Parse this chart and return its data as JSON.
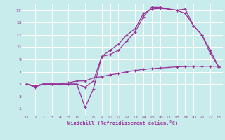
{
  "xlabel": "Windchill (Refroidissement éolien,°C)",
  "bg_color": "#c8ecec",
  "grid_color": "#ffffff",
  "line_color": "#993399",
  "xlim": [
    -0.5,
    23.5
  ],
  "ylim": [
    0,
    18
  ],
  "xticks": [
    0,
    1,
    2,
    3,
    4,
    5,
    6,
    7,
    8,
    9,
    10,
    11,
    12,
    13,
    14,
    15,
    16,
    17,
    18,
    19,
    20,
    21,
    22,
    23
  ],
  "yticks": [
    1,
    3,
    5,
    7,
    9,
    11,
    13,
    15,
    17
  ],
  "line1_x": [
    0,
    1,
    2,
    3,
    4,
    5,
    6,
    7,
    8,
    9,
    10,
    11,
    12,
    13,
    14,
    15,
    16,
    17,
    18,
    19,
    20,
    21,
    22,
    23
  ],
  "line1_y": [
    5,
    4.5,
    5,
    5,
    5,
    5.2,
    5.5,
    5.5,
    6.0,
    6.2,
    6.5,
    6.7,
    7.0,
    7.2,
    7.4,
    7.5,
    7.6,
    7.7,
    7.8,
    7.85,
    7.9,
    7.9,
    7.9,
    7.9
  ],
  "line2_x": [
    0,
    1,
    2,
    3,
    4,
    5,
    6,
    7,
    8,
    9,
    10,
    11,
    12,
    13,
    14,
    15,
    16,
    17,
    18,
    19,
    20,
    21,
    22,
    23
  ],
  "line2_y": [
    5,
    4.7,
    5,
    5,
    5,
    5,
    5,
    1.2,
    4.2,
    9.5,
    9.8,
    10.5,
    12.0,
    13.5,
    16.0,
    17.5,
    17.5,
    17.2,
    17.0,
    17.2,
    14.5,
    13.0,
    10.0,
    7.8
  ],
  "line3_x": [
    0,
    1,
    2,
    3,
    4,
    5,
    6,
    7,
    8,
    9,
    10,
    11,
    12,
    13,
    14,
    15,
    16,
    17,
    18,
    19,
    20,
    21,
    22,
    23
  ],
  "line3_y": [
    5,
    4.7,
    5,
    5,
    5,
    5,
    5,
    4.5,
    5.5,
    9.5,
    10.5,
    11.5,
    13.0,
    14.0,
    16.5,
    17.2,
    17.3,
    17.2,
    17.0,
    16.5,
    14.5,
    13.0,
    10.5,
    7.8
  ]
}
